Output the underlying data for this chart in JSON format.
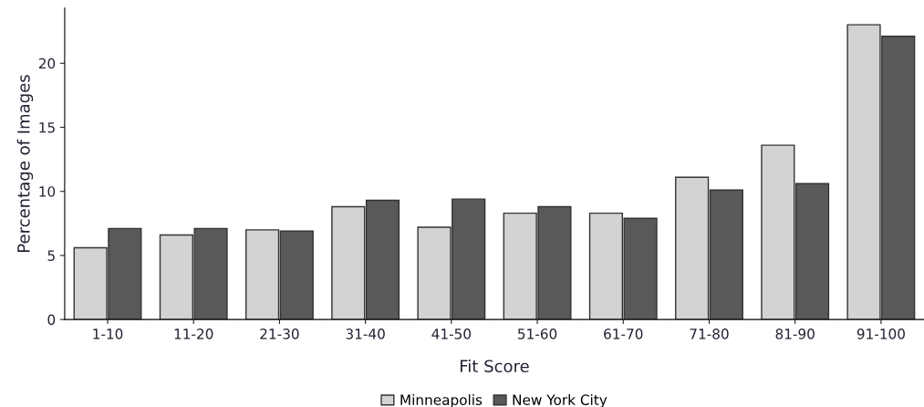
{
  "chart_data": {
    "type": "bar",
    "xlabel": "Fit Score",
    "ylabel": "Percentage of Images",
    "categories": [
      "1-10",
      "11-20",
      "21-30",
      "31-40",
      "41-50",
      "51-60",
      "61-70",
      "71-80",
      "81-90",
      "91-100"
    ],
    "series": [
      {
        "name": "Minneapolis",
        "color": "#d3d3d3",
        "values": [
          5.6,
          6.6,
          7.0,
          8.8,
          7.2,
          8.3,
          8.3,
          11.1,
          13.6,
          23.0
        ]
      },
      {
        "name": "New York City",
        "color": "#595959",
        "values": [
          7.1,
          7.1,
          6.9,
          9.3,
          9.4,
          8.8,
          7.9,
          10.1,
          10.6,
          22.1
        ]
      }
    ],
    "ylim": [
      0,
      24.3
    ],
    "yticks": [
      0,
      5,
      10,
      15,
      20
    ],
    "grid": false,
    "legend": "bottom"
  }
}
